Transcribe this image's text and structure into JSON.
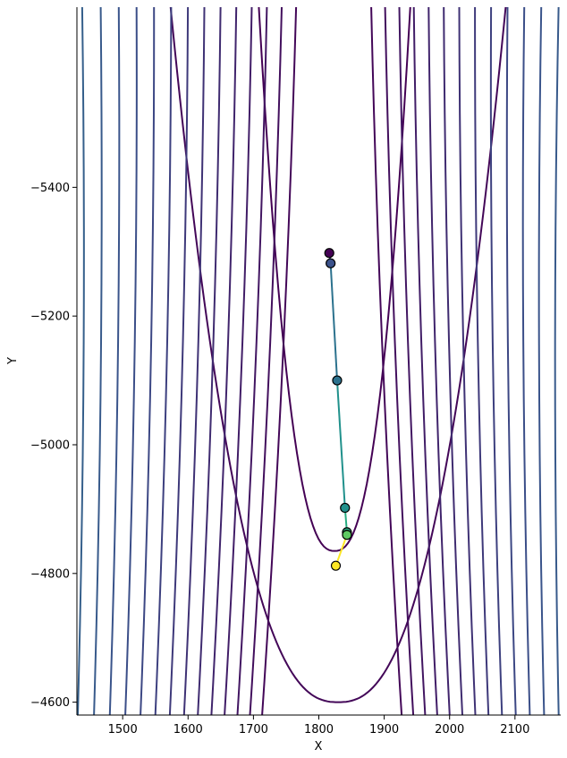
{
  "chart_data": {
    "type": "contour",
    "title": "",
    "xlabel": "X",
    "ylabel": "Y",
    "xlim": [
      1430,
      2170
    ],
    "ylim": [
      -4580,
      -5680
    ],
    "y_axis_inverted": true,
    "grid": false,
    "xticks": [
      1500,
      1600,
      1700,
      1800,
      1900,
      2000,
      2100
    ],
    "yticks": [
      -5400,
      -5200,
      -5000,
      -4800,
      -4600
    ],
    "xtick_labels": [
      "1500",
      "1600",
      "1700",
      "1800",
      "1900",
      "2000",
      "2100"
    ],
    "ytick_labels": [
      "−5400",
      "−5200",
      "−5000",
      "−4800",
      "−4600"
    ],
    "colormap": "viridis",
    "contours": {
      "center_x": 1820,
      "vertex_y": [
        -4600,
        -4835
      ],
      "outer_levels": 46,
      "color_scale": [
        "#440154",
        "#3b528b",
        "#21918c",
        "#5ec962",
        "#fde725"
      ]
    },
    "path": {
      "points": [
        {
          "x": 1816,
          "y": -5298,
          "color": "#440154"
        },
        {
          "x": 1818,
          "y": -5282,
          "color": "#3b528b"
        },
        {
          "x": 1828,
          "y": -5100,
          "color": "#2c728e"
        },
        {
          "x": 1840,
          "y": -4902,
          "color": "#21918c"
        },
        {
          "x": 1843,
          "y": -4864,
          "color": "#27ad81"
        },
        {
          "x": 1843,
          "y": -4860,
          "color": "#5ec962"
        },
        {
          "x": 1826,
          "y": -4812,
          "color": "#fde725"
        }
      ]
    }
  }
}
